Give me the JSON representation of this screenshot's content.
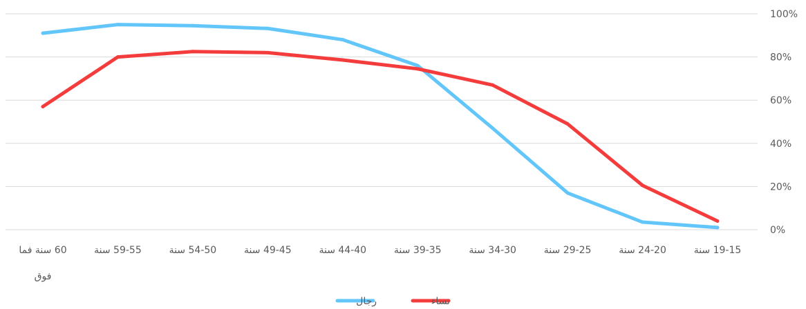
{
  "chart_data": {
    "type": "line",
    "categories": [
      "60 سنة فما فوق",
      "59-55 سنة",
      "54-50 سنة",
      "49-45 سنة",
      "44-40 سنة",
      "39-35 سنة",
      "34-30 سنة",
      "29-25 سنة",
      "24-20 سنة",
      "19-15 سنة"
    ],
    "series": [
      {
        "name": "رجال",
        "color": "#63c6fb",
        "values": [
          91,
          95,
          94.5,
          93.2,
          88,
          76,
          47,
          17,
          3.5,
          1
        ]
      },
      {
        "name": "نساء",
        "color": "#f53c3c",
        "values": [
          57,
          80,
          82.5,
          82,
          78.6,
          74.5,
          67,
          49,
          20.5,
          4
        ]
      }
    ],
    "ylim": [
      0,
      100
    ],
    "y_ticks": [
      "0%",
      "20%",
      "40%",
      "60%",
      "80%",
      "100%"
    ],
    "y_tick_values": [
      0,
      20,
      40,
      60,
      80,
      100
    ],
    "y_axis_side": "right",
    "grid": true,
    "legend_position": "bottom"
  }
}
